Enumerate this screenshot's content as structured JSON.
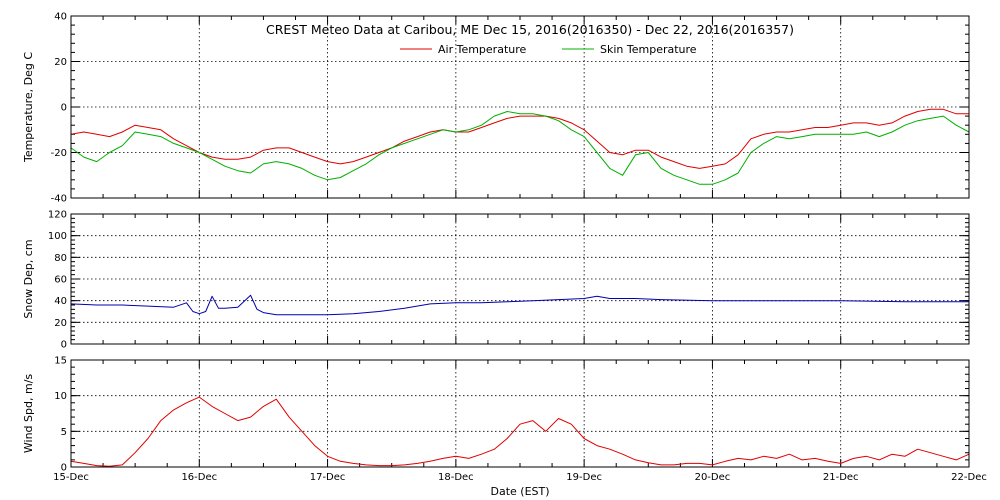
{
  "chart_data": {
    "type": "line",
    "title": "CREST Meteo Data at Caribou, ME   Dec 15, 2016(2016350) - Dec 22, 2016(2016357)",
    "xlabel": "Date (EST)",
    "x_tick_labels": [
      "15-Dec",
      "16-Dec",
      "17-Dec",
      "18-Dec",
      "19-Dec",
      "20-Dec",
      "21-Dec",
      "22-Dec"
    ],
    "xlim": [
      0,
      7
    ],
    "grid": true,
    "panels": [
      {
        "ylabel": "Temperature, Deg C",
        "ylim": [
          -40,
          40
        ],
        "y_ticks": [
          -40,
          -20,
          0,
          20,
          40
        ],
        "legend": "top-center",
        "series": [
          {
            "name": "Air Temperature",
            "color": "#e00000",
            "x": [
              0,
              0.1,
              0.2,
              0.3,
              0.4,
              0.5,
              0.6,
              0.7,
              0.8,
              0.9,
              1.0,
              1.1,
              1.2,
              1.3,
              1.4,
              1.5,
              1.6,
              1.7,
              1.8,
              1.9,
              2.0,
              2.1,
              2.2,
              2.3,
              2.4,
              2.5,
              2.6,
              2.7,
              2.8,
              2.9,
              3.0,
              3.1,
              3.2,
              3.3,
              3.4,
              3.5,
              3.6,
              3.7,
              3.8,
              3.9,
              4.0,
              4.1,
              4.2,
              4.3,
              4.4,
              4.5,
              4.6,
              4.7,
              4.8,
              4.9,
              5.0,
              5.1,
              5.2,
              5.3,
              5.4,
              5.5,
              5.6,
              5.7,
              5.8,
              5.9,
              6.0,
              6.1,
              6.2,
              6.3,
              6.4,
              6.5,
              6.6,
              6.7,
              6.8,
              6.9,
              7.0
            ],
            "y": [
              -12,
              -11,
              -12,
              -13,
              -11,
              -8,
              -9,
              -10,
              -14,
              -17,
              -20,
              -22,
              -23,
              -23,
              -22,
              -19,
              -18,
              -18,
              -20,
              -22,
              -24,
              -25,
              -24,
              -22,
              -20,
              -18,
              -15,
              -13,
              -11,
              -10,
              -11,
              -11,
              -9,
              -7,
              -5,
              -4,
              -4,
              -4,
              -5,
              -7,
              -10,
              -15,
              -20,
              -21,
              -19,
              -19,
              -22,
              -24,
              -26,
              -27,
              -26,
              -25,
              -21,
              -14,
              -12,
              -11,
              -11,
              -10,
              -9,
              -9,
              -8,
              -7,
              -7,
              -8,
              -7,
              -4,
              -2,
              -1,
              -1,
              -3,
              -3
            ]
          },
          {
            "name": "Skin Temperature",
            "color": "#00b000",
            "x": [
              0,
              0.1,
              0.2,
              0.3,
              0.4,
              0.5,
              0.6,
              0.7,
              0.8,
              0.9,
              1.0,
              1.1,
              1.2,
              1.3,
              1.4,
              1.5,
              1.6,
              1.7,
              1.8,
              1.9,
              2.0,
              2.1,
              2.2,
              2.3,
              2.4,
              2.5,
              2.6,
              2.7,
              2.8,
              2.9,
              3.0,
              3.1,
              3.2,
              3.3,
              3.4,
              3.5,
              3.6,
              3.7,
              3.8,
              3.9,
              4.0,
              4.1,
              4.2,
              4.3,
              4.4,
              4.5,
              4.6,
              4.7,
              4.8,
              4.9,
              5.0,
              5.1,
              5.2,
              5.3,
              5.4,
              5.5,
              5.6,
              5.7,
              5.8,
              5.9,
              6.0,
              6.1,
              6.2,
              6.3,
              6.4,
              6.5,
              6.6,
              6.7,
              6.8,
              6.9,
              7.0
            ],
            "y": [
              -18,
              -22,
              -24,
              -20,
              -17,
              -11,
              -12,
              -13,
              -16,
              -18,
              -20,
              -23,
              -26,
              -28,
              -29,
              -25,
              -24,
              -25,
              -27,
              -30,
              -32,
              -31,
              -28,
              -25,
              -21,
              -18,
              -16,
              -14,
              -12,
              -10,
              -11,
              -10,
              -8,
              -4,
              -2,
              -3,
              -3,
              -4,
              -6,
              -10,
              -13,
              -20,
              -27,
              -30,
              -21,
              -20,
              -27,
              -30,
              -32,
              -34,
              -34,
              -32,
              -29,
              -20,
              -16,
              -13,
              -14,
              -13,
              -12,
              -12,
              -12,
              -12,
              -11,
              -13,
              -11,
              -8,
              -6,
              -5,
              -4,
              -8,
              -11
            ]
          }
        ]
      },
      {
        "ylabel": "Snow Dep, cm",
        "ylim": [
          0,
          120
        ],
        "y_ticks": [
          0,
          20,
          40,
          60,
          80,
          100,
          120
        ],
        "series": [
          {
            "name": "",
            "color": "#0000b0",
            "x": [
              0,
              0.2,
              0.4,
              0.6,
              0.8,
              0.9,
              0.95,
              1.0,
              1.05,
              1.1,
              1.15,
              1.2,
              1.3,
              1.4,
              1.45,
              1.5,
              1.6,
              1.8,
              2.0,
              2.2,
              2.4,
              2.6,
              2.8,
              3.0,
              3.2,
              3.4,
              3.6,
              3.8,
              4.0,
              4.1,
              4.2,
              4.4,
              4.6,
              5.0,
              5.5,
              6.0,
              6.5,
              7.0
            ],
            "y": [
              37,
              36,
              36,
              35,
              34,
              38,
              30,
              28,
              30,
              44,
              33,
              33,
              34,
              45,
              32,
              29,
              27,
              27,
              27,
              28,
              30,
              33,
              37,
              38,
              38,
              39,
              40,
              41,
              42,
              44,
              42,
              42,
              41,
              40,
              40,
              40,
              39,
              39
            ]
          }
        ]
      },
      {
        "ylabel": "Wind Spd, m/s",
        "ylim": [
          0,
          15
        ],
        "y_ticks": [
          0,
          5,
          10,
          15
        ],
        "series": [
          {
            "name": "",
            "color": "#e00000",
            "x": [
              0,
              0.1,
              0.2,
              0.3,
              0.4,
              0.5,
              0.6,
              0.7,
              0.8,
              0.9,
              1.0,
              1.1,
              1.2,
              1.3,
              1.4,
              1.5,
              1.6,
              1.7,
              1.8,
              1.9,
              2.0,
              2.1,
              2.2,
              2.3,
              2.4,
              2.5,
              2.6,
              2.7,
              2.8,
              2.9,
              3.0,
              3.1,
              3.2,
              3.3,
              3.4,
              3.5,
              3.6,
              3.7,
              3.8,
              3.9,
              4.0,
              4.1,
              4.2,
              4.3,
              4.4,
              4.5,
              4.6,
              4.7,
              4.8,
              4.9,
              5.0,
              5.1,
              5.2,
              5.3,
              5.4,
              5.5,
              5.6,
              5.7,
              5.8,
              5.9,
              6.0,
              6.1,
              6.2,
              6.3,
              6.4,
              6.5,
              6.6,
              6.7,
              6.8,
              6.9,
              7.0
            ],
            "y": [
              0.8,
              0.5,
              0.2,
              0.1,
              0.3,
              2,
              4,
              6.5,
              8,
              9,
              9.8,
              8.5,
              7.5,
              6.5,
              7,
              8.5,
              9.5,
              7,
              5,
              3,
              1.5,
              0.8,
              0.5,
              0.3,
              0.2,
              0.2,
              0.3,
              0.5,
              0.8,
              1.2,
              1.5,
              1.2,
              1.8,
              2.5,
              4,
              6,
              6.5,
              5,
              6.8,
              6,
              4,
              3,
              2.5,
              1.8,
              1,
              0.6,
              0.3,
              0.3,
              0.5,
              0.5,
              0.3,
              0.8,
              1.2,
              1,
              1.5,
              1.2,
              1.8,
              1,
              1.2,
              0.8,
              0.5,
              1.2,
              1.5,
              1,
              1.8,
              1.5,
              2.5,
              2,
              1.5,
              1,
              1.8
            ]
          }
        ]
      }
    ]
  }
}
